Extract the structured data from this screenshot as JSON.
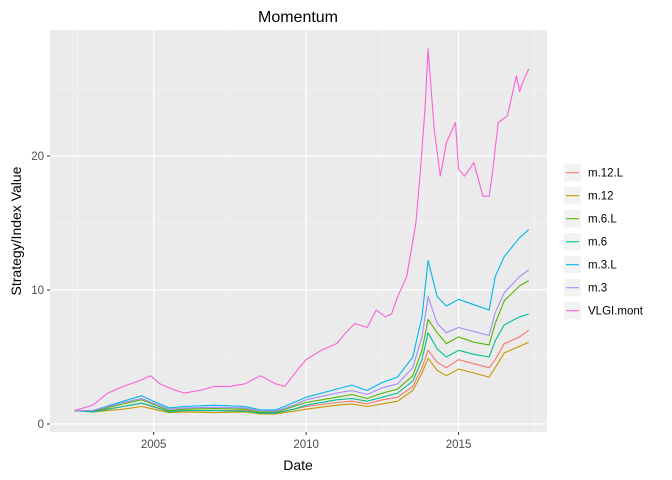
{
  "chart_data": {
    "type": "line",
    "title": "Momentum",
    "xlabel": "Date",
    "ylabel": "Strategy/Index Value",
    "x_ticks": [
      2005,
      2010,
      2015
    ],
    "y_ticks": [
      0,
      10,
      20
    ],
    "xlim": [
      2001.6,
      2017.9
    ],
    "ylim": [
      -0.6,
      29.4
    ],
    "grid": true,
    "legend_position": "right",
    "series": [
      {
        "name": "m.12.L",
        "color": "#F8766D",
        "x": [
          2002.4,
          2003.0,
          2004.0,
          2004.6,
          2005.0,
          2005.5,
          2006.0,
          2007.0,
          2008.0,
          2008.5,
          2009.0,
          2009.6,
          2010.0,
          2011.0,
          2011.5,
          2012.0,
          2012.5,
          2013.0,
          2013.5,
          2013.8,
          2014.0,
          2014.3,
          2014.6,
          2015.0,
          2015.5,
          2016.0,
          2016.2,
          2016.5,
          2017.0,
          2017.3
        ],
        "y": [
          1.0,
          0.95,
          1.3,
          1.55,
          1.25,
          0.95,
          1.0,
          1.0,
          1.0,
          0.85,
          0.85,
          1.1,
          1.3,
          1.6,
          1.7,
          1.5,
          1.8,
          2.0,
          2.8,
          4.2,
          5.5,
          4.6,
          4.2,
          4.8,
          4.5,
          4.2,
          4.8,
          6.0,
          6.5,
          7.0
        ]
      },
      {
        "name": "m.12",
        "color": "#C49A00",
        "x": [
          2002.4,
          2003.0,
          2004.0,
          2004.6,
          2005.0,
          2005.5,
          2006.0,
          2007.0,
          2008.0,
          2008.5,
          2009.0,
          2009.6,
          2010.0,
          2011.0,
          2011.5,
          2012.0,
          2012.5,
          2013.0,
          2013.5,
          2013.8,
          2014.0,
          2014.3,
          2014.6,
          2015.0,
          2015.5,
          2016.0,
          2016.2,
          2016.5,
          2017.0,
          2017.3
        ],
        "y": [
          1.0,
          0.9,
          1.1,
          1.3,
          1.1,
          0.85,
          0.9,
          0.85,
          0.9,
          0.75,
          0.75,
          0.95,
          1.1,
          1.4,
          1.5,
          1.3,
          1.5,
          1.7,
          2.5,
          3.8,
          4.9,
          4.0,
          3.6,
          4.1,
          3.8,
          3.5,
          4.2,
          5.3,
          5.8,
          6.1
        ]
      },
      {
        "name": "m.6.L",
        "color": "#53B400",
        "x": [
          2002.4,
          2003.0,
          2004.0,
          2004.6,
          2005.0,
          2005.5,
          2006.0,
          2007.0,
          2008.0,
          2008.5,
          2009.0,
          2009.6,
          2010.0,
          2011.0,
          2011.5,
          2012.0,
          2012.5,
          2013.0,
          2013.5,
          2013.8,
          2014.0,
          2014.3,
          2014.6,
          2015.0,
          2015.5,
          2016.0,
          2016.2,
          2016.5,
          2017.0,
          2017.3
        ],
        "y": [
          1.0,
          0.95,
          1.5,
          1.8,
          1.45,
          1.0,
          1.1,
          1.15,
          1.1,
          0.9,
          0.9,
          1.3,
          1.6,
          2.0,
          2.2,
          1.9,
          2.3,
          2.6,
          3.6,
          5.5,
          7.8,
          6.8,
          6.0,
          6.5,
          6.1,
          5.9,
          7.5,
          9.2,
          10.3,
          10.7
        ]
      },
      {
        "name": "m.6",
        "color": "#00C094",
        "x": [
          2002.4,
          2003.0,
          2004.0,
          2004.6,
          2005.0,
          2005.5,
          2006.0,
          2007.0,
          2008.0,
          2008.5,
          2009.0,
          2009.6,
          2010.0,
          2011.0,
          2011.5,
          2012.0,
          2012.5,
          2013.0,
          2013.5,
          2013.8,
          2014.0,
          2014.3,
          2014.6,
          2015.0,
          2015.5,
          2016.0,
          2016.2,
          2016.5,
          2017.0,
          2017.3
        ],
        "y": [
          1.0,
          0.9,
          1.3,
          1.55,
          1.3,
          0.9,
          1.0,
          1.0,
          0.95,
          0.8,
          0.8,
          1.1,
          1.4,
          1.8,
          1.9,
          1.7,
          2.0,
          2.3,
          3.2,
          4.8,
          6.8,
          5.6,
          5.0,
          5.5,
          5.2,
          5.0,
          6.2,
          7.4,
          8.0,
          8.2
        ]
      },
      {
        "name": "m.3.L",
        "color": "#00B6EB",
        "x": [
          2002.4,
          2003.0,
          2004.0,
          2004.6,
          2005.0,
          2005.5,
          2006.0,
          2007.0,
          2008.0,
          2008.5,
          2009.0,
          2009.6,
          2010.0,
          2011.0,
          2011.5,
          2012.0,
          2012.5,
          2013.0,
          2013.5,
          2013.8,
          2014.0,
          2014.3,
          2014.6,
          2015.0,
          2015.5,
          2016.0,
          2016.2,
          2016.5,
          2017.0,
          2017.3
        ],
        "y": [
          1.0,
          1.0,
          1.7,
          2.1,
          1.7,
          1.2,
          1.3,
          1.4,
          1.3,
          1.05,
          1.05,
          1.6,
          2.0,
          2.6,
          2.9,
          2.5,
          3.1,
          3.5,
          5.0,
          8.0,
          12.2,
          9.5,
          8.8,
          9.3,
          8.9,
          8.5,
          11.0,
          12.5,
          13.9,
          14.5
        ]
      },
      {
        "name": "m.3",
        "color": "#A58AFF",
        "x": [
          2002.4,
          2003.0,
          2004.0,
          2004.6,
          2005.0,
          2005.5,
          2006.0,
          2007.0,
          2008.0,
          2008.5,
          2009.0,
          2009.6,
          2010.0,
          2011.0,
          2011.5,
          2012.0,
          2012.5,
          2013.0,
          2013.5,
          2013.8,
          2014.0,
          2014.3,
          2014.6,
          2015.0,
          2015.5,
          2016.0,
          2016.2,
          2016.5,
          2017.0,
          2017.3
        ],
        "y": [
          1.0,
          1.0,
          1.6,
          1.9,
          1.55,
          1.1,
          1.2,
          1.25,
          1.2,
          1.0,
          0.95,
          1.4,
          1.8,
          2.3,
          2.5,
          2.2,
          2.7,
          3.0,
          4.2,
          6.5,
          9.5,
          7.5,
          6.8,
          7.2,
          6.9,
          6.6,
          8.3,
          9.8,
          11.0,
          11.5
        ]
      },
      {
        "name": "VLGI.mont",
        "color": "#FB61D7",
        "x": [
          2002.4,
          2003.0,
          2003.5,
          2004.0,
          2004.5,
          2004.9,
          2005.2,
          2005.6,
          2006.0,
          2006.5,
          2007.0,
          2007.5,
          2008.0,
          2008.5,
          2009.0,
          2009.3,
          2009.7,
          2010.0,
          2010.5,
          2011.0,
          2011.3,
          2011.6,
          2012.0,
          2012.3,
          2012.6,
          2012.8,
          2013.0,
          2013.3,
          2013.6,
          2013.75,
          2013.9,
          2014.0,
          2014.2,
          2014.4,
          2014.6,
          2014.9,
          2015.0,
          2015.2,
          2015.5,
          2015.8,
          2016.0,
          2016.1,
          2016.3,
          2016.6,
          2016.9,
          2017.0,
          2017.1,
          2017.3
        ],
        "y": [
          1.0,
          1.4,
          2.3,
          2.8,
          3.2,
          3.6,
          3.0,
          2.6,
          2.3,
          2.5,
          2.8,
          2.8,
          3.0,
          3.6,
          3.0,
          2.8,
          4.0,
          4.8,
          5.5,
          6.0,
          6.8,
          7.5,
          7.2,
          8.5,
          8.0,
          8.2,
          9.5,
          11.0,
          15.0,
          19.0,
          23.5,
          28.0,
          22.0,
          18.5,
          21.0,
          22.5,
          19.0,
          18.5,
          19.5,
          17.0,
          17.0,
          18.5,
          22.5,
          23.0,
          26.0,
          24.8,
          25.5,
          26.5
        ]
      }
    ]
  }
}
